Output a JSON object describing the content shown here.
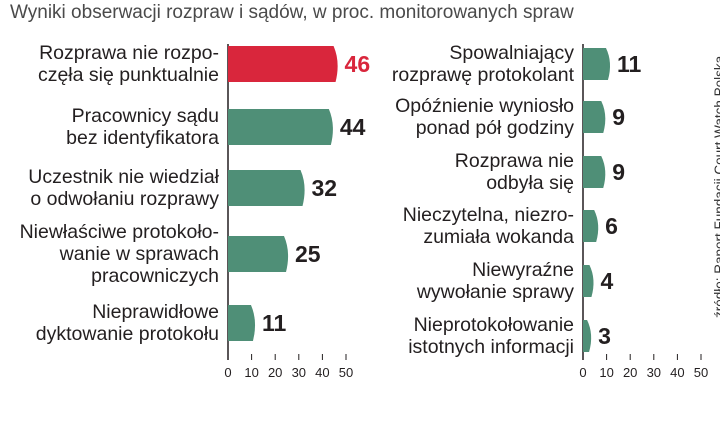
{
  "chart_data": {
    "type": "bar",
    "orientation": "horizontal",
    "title": "Wyniki obserwacji rozpraw i sądów, w proc. monitorowanych spraw",
    "unit": "%",
    "xlim": [
      0,
      50
    ],
    "ticks": [
      "0",
      "10",
      "20",
      "30",
      "40",
      "50"
    ],
    "panels": [
      {
        "categories": [
          "Rozprawa nie rozpo-\nczęła się punktualnie",
          "Pracownicy sądu\nbez identyfikatora",
          "Uczestnik nie wiedział\no odwołaniu rozprawy",
          "Niewłaściwe protokoło-\nwanie w sprawach\npracowniczych",
          "Nieprawidłowe\ndyktowanie protokołu"
        ],
        "values": [
          46,
          44,
          32,
          25,
          11
        ],
        "labels": [
          "46",
          "44",
          "32",
          "25",
          "11"
        ],
        "highlight": [
          true,
          false,
          false,
          false,
          false
        ]
      },
      {
        "categories": [
          "Spowalniający\nrozprawę protokolant",
          "Opóźnienie wyniosło\nponad pół godziny",
          "Rozprawa nie\nodbyła się",
          "Nieczytelna, niezro-\nzumiała wokanda",
          "Niewyraźne\nwywołanie sprawy",
          "Nieprotokołowanie\nistotnych informacji"
        ],
        "values": [
          11,
          9,
          9,
          6,
          4,
          3
        ],
        "labels": [
          "11",
          "9",
          "9",
          "6",
          "4",
          "3"
        ],
        "highlight": [
          false,
          false,
          false,
          false,
          false,
          false
        ]
      }
    ],
    "source": "źródło: Raport Fundacji Court Watch Polska",
    "colors": {
      "bar": "#4f8f77",
      "highlight_bar": "#d9263c",
      "highlight_text": "#d9263c",
      "value_text": "#231f20",
      "axis": "#231f20"
    }
  }
}
